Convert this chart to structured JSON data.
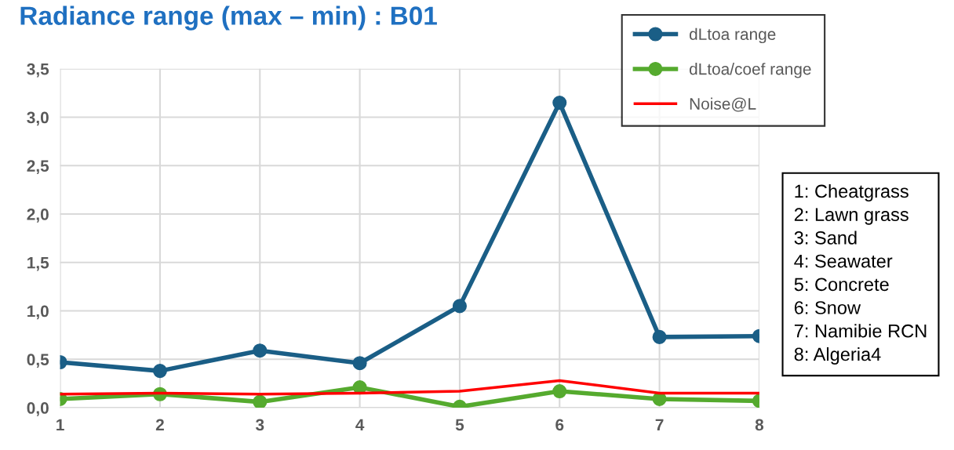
{
  "chart_data": {
    "type": "line",
    "title": "Radiance range (max – min) : B01",
    "x": [
      1,
      2,
      3,
      4,
      5,
      6,
      7,
      8
    ],
    "series": [
      {
        "name": "dLtoa range",
        "color": "#1a5e86",
        "marker": "circle",
        "values": [
          0.47,
          0.38,
          0.59,
          0.46,
          1.05,
          3.15,
          0.73,
          0.74
        ]
      },
      {
        "name": "dLtoa/coef range",
        "color": "#55aa2e",
        "marker": "circle",
        "values": [
          0.09,
          0.14,
          0.06,
          0.21,
          0.01,
          0.17,
          0.09,
          0.07
        ]
      },
      {
        "name": "Noise@L",
        "color": "#ff0000",
        "values": [
          0.14,
          0.15,
          0.14,
          0.15,
          0.17,
          0.28,
          0.15,
          0.15
        ]
      }
    ],
    "xlim": [
      1,
      8
    ],
    "xticks": [
      1,
      2,
      3,
      4,
      5,
      6,
      7,
      8
    ],
    "ylim": [
      0,
      3.5
    ],
    "yticks": [
      {
        "value": 0,
        "label": "0,0"
      },
      {
        "value": 0.5,
        "label": "0,5"
      },
      {
        "value": 1.0,
        "label": "1,0"
      },
      {
        "value": 1.5,
        "label": "1,5"
      },
      {
        "value": 2.0,
        "label": "2,0"
      },
      {
        "value": 2.5,
        "label": "2,5"
      },
      {
        "value": 3.0,
        "label": "3,0"
      },
      {
        "value": 3.5,
        "label": "3,5"
      }
    ],
    "grid": true,
    "legend": "top right",
    "annotations": [
      "1: Cheatgrass\n2: Lawn grass\n3: Sand\n4: Seawater\n5: Concrete\n6: Snow\n7: Namibie RCN\n8: Algeria4"
    ]
  }
}
